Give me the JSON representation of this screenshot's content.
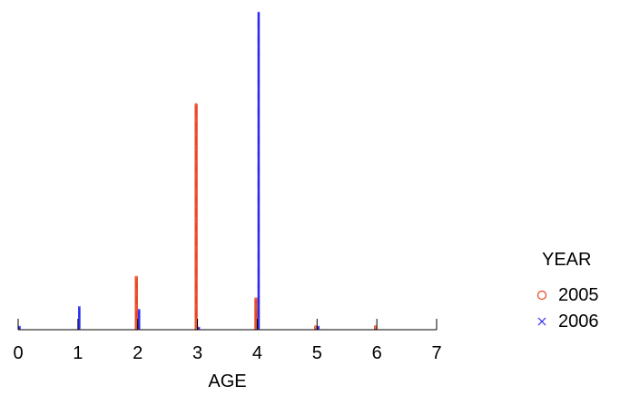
{
  "chart_data": {
    "type": "scatter",
    "xlabel": "AGE",
    "ylabel": "",
    "x_ticks": [
      0,
      1,
      2,
      3,
      4,
      5,
      6,
      7
    ],
    "xlim": [
      0,
      7
    ],
    "ylim": [
      0,
      340
    ],
    "grid": false,
    "legend": {
      "title": "YEAR",
      "placement": "right",
      "entries": [
        {
          "label": "2005",
          "marker": "circle",
          "color": "#e8431f"
        },
        {
          "label": "2006",
          "marker": "cross",
          "color": "#2b2bf0"
        }
      ]
    },
    "series": [
      {
        "name": "2005",
        "color": "#e8431f",
        "marker": "circle",
        "points": [
          {
            "x": 2,
            "count": 56
          },
          {
            "x": 3,
            "count": 240
          },
          {
            "x": 4,
            "count": 33
          },
          {
            "x": 5,
            "count": 3
          },
          {
            "x": 6,
            "count": 3
          }
        ]
      },
      {
        "name": "2006",
        "color": "#2b2bf0",
        "marker": "cross",
        "points": [
          {
            "x": 0,
            "count": 3
          },
          {
            "x": 1,
            "count": 24
          },
          {
            "x": 2,
            "count": 21
          },
          {
            "x": 3,
            "count": 2
          },
          {
            "x": 4,
            "count": 338
          },
          {
            "x": 5,
            "count": 3
          }
        ]
      }
    ]
  }
}
